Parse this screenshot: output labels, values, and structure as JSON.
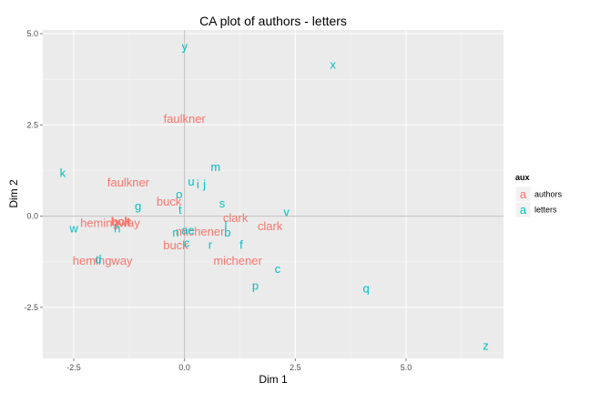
{
  "chart_data": {
    "type": "scatter",
    "title": "CA plot of authors - letters",
    "xlabel": "Dim 1",
    "ylabel": "Dim 2",
    "xlim": [
      -3.2,
      7.2
    ],
    "ylim": [
      -3.9,
      5.1
    ],
    "xticks": [
      -2.5,
      0,
      2.5,
      5
    ],
    "xtick_labels": [
      "-2.5",
      "0.0",
      "2.5",
      "5.0"
    ],
    "yticks": [
      -2.5,
      0,
      2.5,
      5
    ],
    "ytick_labels": [
      "-2.5",
      "0.0",
      "2.5",
      "5.0"
    ],
    "grid": true,
    "legend": {
      "title": "aux",
      "position": "right",
      "key_glyph": "a",
      "entries": [
        {
          "label": "authors",
          "color": "#F8766D"
        },
        {
          "label": "letters",
          "color": "#00BFC4"
        }
      ]
    },
    "series": [
      {
        "name": "authors",
        "color": "#F8766D",
        "points": [
          {
            "label": "faulkner",
            "x": 0.0,
            "y": 2.67
          },
          {
            "label": "faulkner",
            "x": -1.27,
            "y": 0.92
          },
          {
            "label": "buck",
            "x": -0.35,
            "y": 0.4
          },
          {
            "label": "buck",
            "x": -0.2,
            "y": -0.8
          },
          {
            "label": "hemingway",
            "x": -1.68,
            "y": -0.18
          },
          {
            "label": "hemingway",
            "x": -1.85,
            "y": -1.22
          },
          {
            "label": "holt",
            "x": -1.45,
            "y": -0.15
          },
          {
            "label": "holt",
            "x": -1.43,
            "y": -0.15
          },
          {
            "label": "michener",
            "x": 0.35,
            "y": -0.42
          },
          {
            "label": "michener",
            "x": 1.2,
            "y": -1.22
          },
          {
            "label": "clark",
            "x": 1.15,
            "y": -0.05
          },
          {
            "label": "clark",
            "x": 1.93,
            "y": -0.27
          }
        ]
      },
      {
        "name": "letters",
        "color": "#00BFC4",
        "points": [
          {
            "label": "y",
            "x": 0.0,
            "y": 4.65
          },
          {
            "label": "x",
            "x": 3.35,
            "y": 4.15
          },
          {
            "label": "k",
            "x": -2.75,
            "y": 1.18
          },
          {
            "label": "m",
            "x": 0.7,
            "y": 1.35
          },
          {
            "label": "u",
            "x": 0.15,
            "y": 0.95
          },
          {
            "label": "i",
            "x": 0.3,
            "y": 0.87
          },
          {
            "label": "j",
            "x": 0.45,
            "y": 0.87
          },
          {
            "label": "o",
            "x": -0.12,
            "y": 0.6
          },
          {
            "label": "s",
            "x": 0.85,
            "y": 0.35
          },
          {
            "label": "g",
            "x": -1.05,
            "y": 0.27
          },
          {
            "label": "t",
            "x": -0.1,
            "y": 0.17
          },
          {
            "label": "v",
            "x": 2.3,
            "y": 0.12
          },
          {
            "label": "w",
            "x": -2.5,
            "y": -0.33
          },
          {
            "label": "h",
            "x": -1.52,
            "y": -0.33
          },
          {
            "label": "a",
            "x": 0.0,
            "y": -0.38
          },
          {
            "label": "e",
            "x": 0.15,
            "y": -0.38
          },
          {
            "label": "n",
            "x": -0.2,
            "y": -0.45
          },
          {
            "label": "b",
            "x": 0.97,
            "y": -0.45
          },
          {
            "label": "l",
            "x": 0.93,
            "y": -0.25
          },
          {
            "label": "r",
            "x": 0.58,
            "y": -0.78
          },
          {
            "label": "f",
            "x": 1.28,
            "y": -0.78
          },
          {
            "label": "c",
            "x": 0.05,
            "y": -0.73
          },
          {
            "label": "d",
            "x": -1.95,
            "y": -1.18
          },
          {
            "label": "c",
            "x": 2.1,
            "y": -1.45
          },
          {
            "label": "p",
            "x": 1.6,
            "y": -1.9
          },
          {
            "label": "q",
            "x": 4.1,
            "y": -1.98
          },
          {
            "label": "z",
            "x": 6.8,
            "y": -3.55
          }
        ]
      }
    ]
  }
}
